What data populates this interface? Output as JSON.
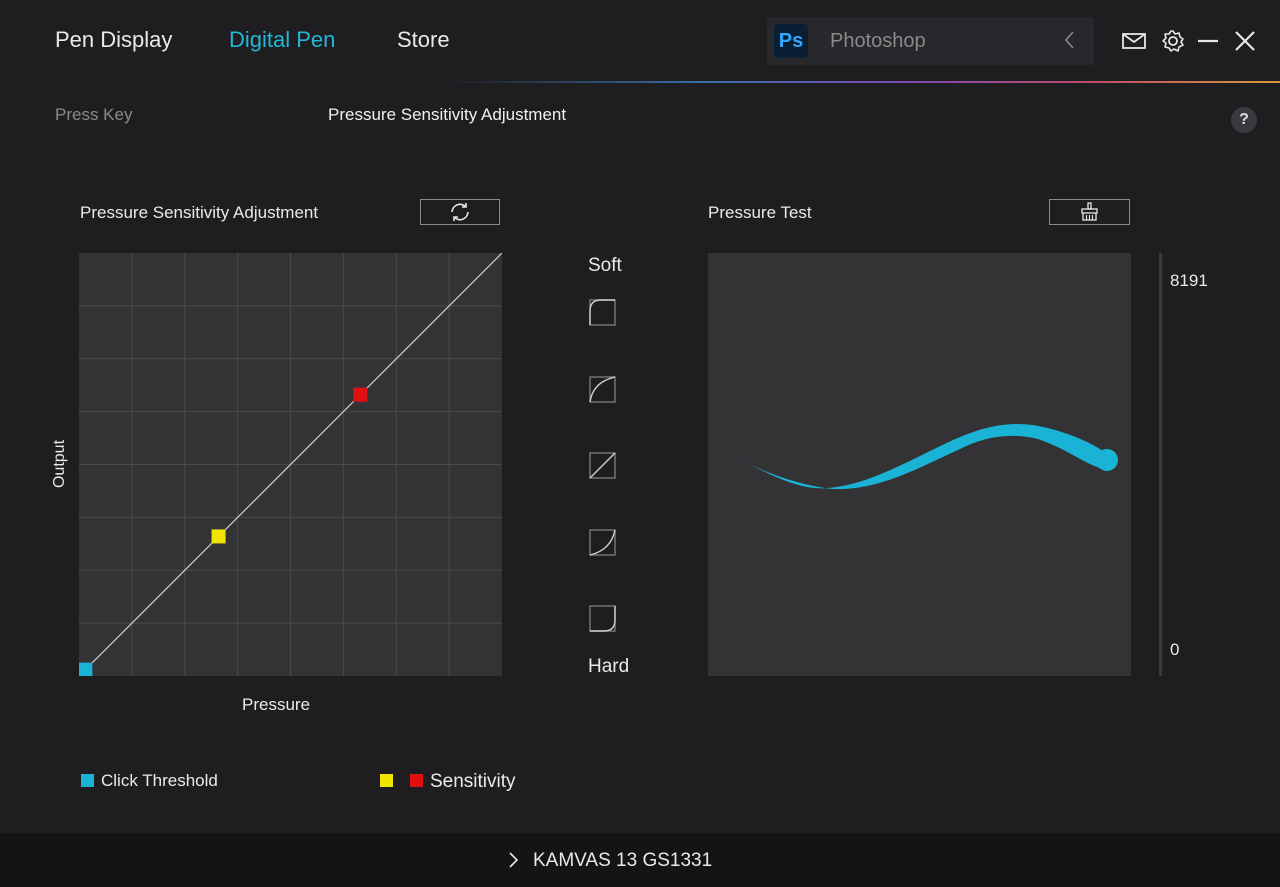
{
  "header": {
    "tabs": [
      {
        "label": "Pen Display",
        "active": false
      },
      {
        "label": "Digital Pen",
        "active": true
      },
      {
        "label": "Store",
        "active": false
      }
    ],
    "app_selector": {
      "logo_text": "Ps",
      "app_name": "Photoshop",
      "chevron_icon": "chevron-left-icon"
    },
    "icons": [
      "mail-icon",
      "gear-icon",
      "minimize-icon",
      "close-icon"
    ]
  },
  "subnav": {
    "press_key": "Press Key",
    "pressure_sensitivity": "Pressure Sensitivity Adjustment",
    "help": "?"
  },
  "curve_panel": {
    "title": "Pressure Sensitivity Adjustment",
    "reset_icon": "refresh-icon",
    "x_label": "Pressure",
    "y_label": "Output",
    "points": {
      "click_threshold": {
        "pressure": 0.015,
        "output": 0.015,
        "color": "#1ab3d6"
      },
      "sensitivity_low": {
        "pressure": 0.33,
        "output": 0.33,
        "color": "#f2e600"
      },
      "sensitivity_high": {
        "pressure": 0.665,
        "output": 0.665,
        "color": "#e01010"
      }
    }
  },
  "presets": {
    "soft_label": "Soft",
    "hard_label": "Hard",
    "items": [
      "soft-curve-icon",
      "medium-soft-curve-icon",
      "linear-curve-icon",
      "medium-hard-curve-icon",
      "hard-curve-icon"
    ]
  },
  "test_panel": {
    "title": "Pressure Test",
    "clear_icon": "brush-clear-icon",
    "max_value": "8191",
    "min_value": "0",
    "stroke_color": "#1ab3d6"
  },
  "legend": {
    "click_threshold": "Click Threshold",
    "sensitivity": "Sensitivity"
  },
  "footer": {
    "device_name": "KAMVAS 13 GS1331"
  }
}
